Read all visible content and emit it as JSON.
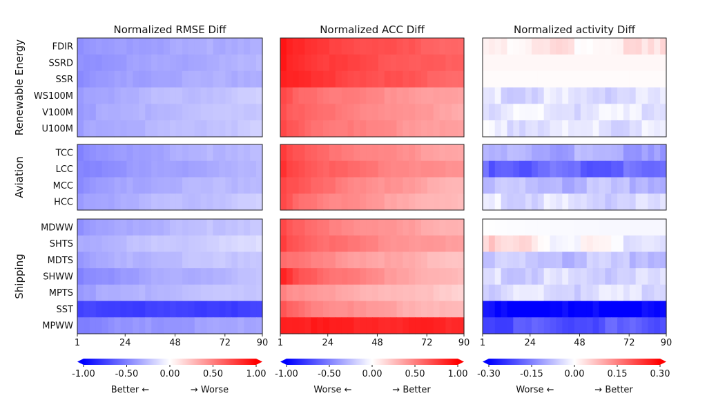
{
  "chart_data": {
    "type": "heatmap",
    "x_range": [
      1,
      90
    ],
    "x_ticks": [
      "1",
      "24",
      "48",
      "72",
      "90"
    ],
    "groups": [
      {
        "name": "Renewable Energy",
        "variables": [
          "FDIR",
          "SSRD",
          "SSR",
          "WS100M",
          "V100M",
          "U100M"
        ]
      },
      {
        "name": "Aviation",
        "variables": [
          "TCC",
          "LCC",
          "MCC",
          "HCC"
        ]
      },
      {
        "name": "Shipping",
        "variables": [
          "MDWW",
          "SHTS",
          "MDTS",
          "SHWW",
          "MPTS",
          "SST",
          "MPWW"
        ]
      }
    ],
    "panels": [
      {
        "title": "Normalized RMSE Diff",
        "vmin": -1.0,
        "vmax": 1.0,
        "colorbar_ticks": [
          "-1.00",
          "-0.50",
          "0.00",
          "0.50",
          "1.00"
        ],
        "colorbar_label_left": "Better ←",
        "colorbar_label_right": "→ Worse",
        "rows": {
          "FDIR": {
            "start": -0.45,
            "end": -0.3
          },
          "SSRD": {
            "start": -0.45,
            "end": -0.3
          },
          "SSR": {
            "start": -0.45,
            "end": -0.3
          },
          "WS100M": {
            "start": -0.4,
            "end": -0.2
          },
          "V100M": {
            "start": -0.4,
            "end": -0.2
          },
          "U100M": {
            "start": -0.4,
            "end": -0.2
          },
          "TCC": {
            "start": -0.5,
            "end": -0.25
          },
          "LCC": {
            "start": -0.5,
            "end": -0.3
          },
          "MCC": {
            "start": -0.45,
            "end": -0.25
          },
          "HCC": {
            "start": -0.4,
            "end": -0.2
          },
          "MDWW": {
            "start": -0.45,
            "end": -0.2
          },
          "SHTS": {
            "start": -0.35,
            "end": -0.15
          },
          "MDTS": {
            "start": -0.4,
            "end": -0.2
          },
          "SHWW": {
            "start": -0.5,
            "end": -0.25
          },
          "MPTS": {
            "start": -0.4,
            "end": -0.2
          },
          "SST": {
            "start": -0.75,
            "end": -0.75
          },
          "MPWW": {
            "start": -0.5,
            "end": -0.35
          }
        }
      },
      {
        "title": "Normalized ACC Diff",
        "vmin": -1.0,
        "vmax": 1.0,
        "colorbar_ticks": [
          "-1.00",
          "-0.50",
          "0.00",
          "0.50",
          "1.00"
        ],
        "colorbar_label_left": "Worse ←",
        "colorbar_label_right": "→ Better",
        "rows": {
          "FDIR": {
            "start": 0.9,
            "end": 0.6
          },
          "SSRD": {
            "start": 0.9,
            "end": 0.6
          },
          "SSR": {
            "start": 0.9,
            "end": 0.6
          },
          "WS100M": {
            "start": 0.7,
            "end": 0.35
          },
          "V100M": {
            "start": 0.7,
            "end": 0.35
          },
          "U100M": {
            "start": 0.7,
            "end": 0.35
          },
          "TCC": {
            "start": 0.75,
            "end": 0.35
          },
          "LCC": {
            "start": 0.8,
            "end": 0.4
          },
          "MCC": {
            "start": 0.75,
            "end": 0.3
          },
          "HCC": {
            "start": 0.7,
            "end": 0.25
          },
          "MDWW": {
            "start": 0.7,
            "end": 0.3
          },
          "SHTS": {
            "start": 0.75,
            "end": 0.35
          },
          "MDTS": {
            "start": 0.6,
            "end": 0.25
          },
          "SHWW": {
            "start": 0.85,
            "end": 0.25
          },
          "MPTS": {
            "start": 0.5,
            "end": 0.2
          },
          "SST": {
            "start": 0.65,
            "end": 0.25
          },
          "MPWW": {
            "start": 0.9,
            "end": 0.85
          }
        }
      },
      {
        "title": "Normalized activity Diff",
        "vmin": -0.3,
        "vmax": 0.3,
        "colorbar_ticks": [
          "-0.30",
          "-0.15",
          "0.00",
          "0.15",
          "0.30"
        ],
        "colorbar_label_left": "Worse ←",
        "colorbar_label_right": "→ Better",
        "rows": {
          "FDIR": {
            "start": 0.03,
            "end": 0.02
          },
          "SSRD": {
            "start": 0.01,
            "end": 0.01
          },
          "SSR": {
            "start": 0.005,
            "end": 0.005
          },
          "WS100M": {
            "start": -0.04,
            "end": -0.04
          },
          "V100M": {
            "start": -0.03,
            "end": -0.03
          },
          "U100M": {
            "start": -0.03,
            "end": -0.03
          },
          "TCC": {
            "start": -0.1,
            "end": -0.1
          },
          "LCC": {
            "start": -0.18,
            "end": -0.18
          },
          "MCC": {
            "start": -0.08,
            "end": -0.08
          },
          "HCC": {
            "start": -0.03,
            "end": -0.05
          },
          "MDWW": {
            "start": 0.0,
            "end": -0.01
          },
          "SHTS": {
            "start": 0.06,
            "end": -0.03
          },
          "MDTS": {
            "start": -0.07,
            "end": -0.07
          },
          "SHWW": {
            "start": -0.05,
            "end": -0.05
          },
          "MPTS": {
            "start": -0.05,
            "end": -0.04
          },
          "SST": {
            "start": -0.3,
            "end": -0.3
          },
          "MPWW": {
            "start": -0.2,
            "end": -0.2
          }
        }
      }
    ]
  }
}
